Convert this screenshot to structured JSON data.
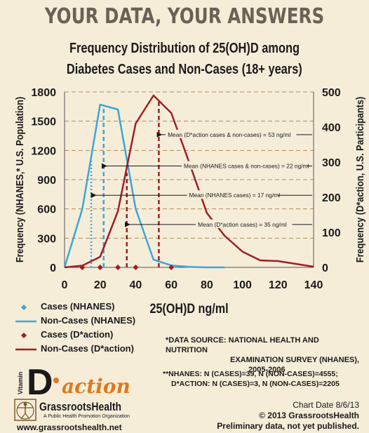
{
  "banner": "YOUR DATA, YOUR ANSWERS",
  "chart_data": {
    "type": "line",
    "title_line1": "Frequency Distribution of 25(OH)D among",
    "title_line2": "Diabetes Cases and Non-Cases (18+ years)",
    "xlabel": "25(OH)D ng/ml",
    "ylabel_left": "Frequency (NHANES,* U.S. Population)",
    "ylabel_right": "Frequency (D*action, U.S. Participants)",
    "xlim": [
      0,
      140
    ],
    "ylim_left": [
      0,
      1800
    ],
    "ylim_right": [
      0,
      500
    ],
    "x_ticks": [
      0,
      20,
      40,
      60,
      80,
      100,
      120,
      140
    ],
    "y_ticks_left": [
      0,
      300,
      600,
      900,
      1200,
      1500,
      1800
    ],
    "y_ticks_right": [
      0,
      100,
      200,
      300,
      400,
      500
    ],
    "grid": "horizontal dashed",
    "series": [
      {
        "name": "Cases (NHANES)",
        "kind": "marker",
        "axis": "left",
        "color": "#3aa7d9",
        "x": [
          10,
          20,
          30
        ],
        "y": [
          0,
          0,
          0
        ]
      },
      {
        "name": "Non-Cases (NHANES)",
        "kind": "line",
        "axis": "left",
        "color": "#3aa7d9",
        "x": [
          0,
          10,
          20,
          30,
          40,
          50,
          60,
          70,
          80,
          90
        ],
        "y": [
          0,
          600,
          1670,
          1620,
          600,
          80,
          20,
          5,
          0,
          0
        ]
      },
      {
        "name": "Cases (D*action)",
        "kind": "marker",
        "axis": "right",
        "color": "#a01e22",
        "x": [
          10,
          20,
          30,
          40,
          60
        ],
        "y": [
          0,
          0,
          0,
          0,
          0
        ]
      },
      {
        "name": "Non-Cases (D*action)",
        "kind": "line",
        "axis": "right",
        "color": "#a01e22",
        "x": [
          0,
          10,
          20,
          30,
          40,
          50,
          60,
          70,
          80,
          90,
          100,
          110,
          120,
          130,
          140
        ],
        "y": [
          0,
          5,
          30,
          160,
          410,
          490,
          440,
          300,
          155,
          90,
          45,
          20,
          18,
          10,
          2
        ]
      }
    ],
    "reference_lines": [
      {
        "x": 15,
        "color": "#3aa7d9",
        "style": "dotted",
        "top_left": 1100
      },
      {
        "x": 22,
        "color": "#3aa7d9",
        "style": "dashed",
        "top_left": 1640
      },
      {
        "x": 35,
        "color": "#a01e22",
        "style": "dashed",
        "top_right": 270
      },
      {
        "x": 53,
        "color": "#a01e22",
        "style": "dashed",
        "top_right": 480
      }
    ],
    "annotations": [
      {
        "text": "Mean (D*action cases & non-cases) = 53 ng/ml",
        "x_start": 53,
        "y_left": 1362,
        "x_text": 58
      },
      {
        "text": "Mean (NHANES cases & non-cases) = 22 ng/ml",
        "x_start": 22,
        "y_left": 1040,
        "x_text": 67
      },
      {
        "text": "Mean (NHANES cases) = 17 ng/ml",
        "x_start": 16,
        "y_left": 740,
        "x_text": 70
      },
      {
        "text": "Mean (D*action cases) = 35 ng/ml",
        "x_start": 35,
        "y_left": 440,
        "x_text": 75
      }
    ]
  },
  "legend": [
    {
      "label": "Cases (NHANES)",
      "kind": "marker",
      "color": "#3aa7d9"
    },
    {
      "label": "Non-Cases (NHANES)",
      "kind": "line",
      "color": "#3aa7d9"
    },
    {
      "label": "Cases (D*action)",
      "kind": "marker",
      "color": "#a01e22"
    },
    {
      "label": "Non-Cases (D*action)",
      "kind": "line",
      "color": "#a01e22"
    }
  ],
  "source": {
    "line1": "*DATA SOURCE: NATIONAL HEALTH AND NUTRITION",
    "line2": "EXAMINATION SURVEY (NHANES),",
    "line3": "2005-2006"
  },
  "counts": {
    "line1": "**NHANES: N (CASES)=39, N (NON-CASES)=4555;",
    "line2": "D*ACTION: N (CASES)=3, N (NON-CASES)=2205"
  },
  "logo": {
    "vitamin": "Vitamin",
    "d": "D",
    "action": "action"
  },
  "org": {
    "name": "GrassrootsHealth",
    "subtitle": "A Public Health Promotion Organization",
    "url": "www.grassrootshealth.net"
  },
  "footer": {
    "chart_date": "Chart Date 8/6/13",
    "copyright": "© 2013 GrassrootsHealth",
    "note": "Preliminary data, not yet published."
  }
}
